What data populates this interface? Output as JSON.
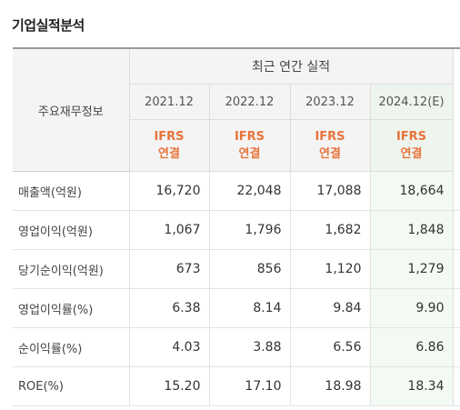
{
  "title": "기업실적분석",
  "table": {
    "left_header": "주요재무정보",
    "group_header": "최근 연간 실적",
    "years": [
      "2021.12",
      "2022.12",
      "2023.12",
      "2024.12(E)"
    ],
    "basis": [
      "IFRS\n연결",
      "IFRS\n연결",
      "IFRS\n연결",
      "IFRS\n연결"
    ],
    "rows": [
      {
        "label": "매출액(억원)",
        "values": [
          "16,720",
          "22,048",
          "17,088",
          "18,664"
        ]
      },
      {
        "label": "영업이익(억원)",
        "values": [
          "1,067",
          "1,796",
          "1,682",
          "1,848"
        ]
      },
      {
        "label": "당기순이익(억원)",
        "values": [
          "673",
          "856",
          "1,120",
          "1,279"
        ]
      },
      {
        "label": "영업이익률(%)",
        "values": [
          "6.38",
          "8.14",
          "9.84",
          "9.90"
        ]
      },
      {
        "label": "순이익률(%)",
        "values": [
          "4.03",
          "3.88",
          "6.56",
          "6.86"
        ]
      },
      {
        "label": "ROE(%)",
        "values": [
          "15.20",
          "17.10",
          "18.98",
          "18.34"
        ]
      }
    ]
  }
}
